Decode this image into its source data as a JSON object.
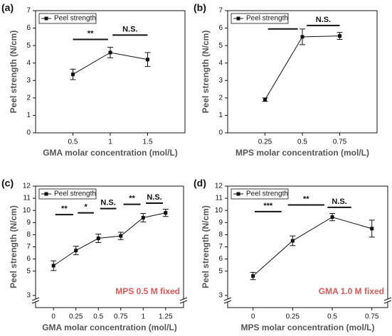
{
  "chart_data": [
    {
      "type": "line",
      "panel_label": "(a)",
      "x_label": "GMA molar concentration (mol/L)",
      "y_label": "Peel strength (N/cm)",
      "x": [
        0.5,
        1,
        1.5
      ],
      "series": [
        {
          "name": "Peel strength",
          "color": "#111111",
          "values": [
            3.35,
            4.6,
            4.2
          ],
          "errors": [
            0.3,
            0.3,
            0.4
          ]
        }
      ],
      "xlim": [
        0,
        2
      ],
      "ylim": [
        0,
        7
      ],
      "xticks": [
        0.5,
        1,
        1.5
      ],
      "yticks": [
        0,
        1,
        2,
        3,
        4,
        5,
        6,
        7
      ],
      "legend": "upper left",
      "y_break": false,
      "annotations": [
        "**",
        "N.S."
      ]
    },
    {
      "type": "line",
      "panel_label": "(b)",
      "x_label": "MPS molar concentration (mol/L)",
      "y_label": "Peel strength (N/cm)",
      "x": [
        0.25,
        0.5,
        0.75
      ],
      "series": [
        {
          "name": "Peel strength",
          "color": "#111111",
          "values": [
            1.9,
            5.5,
            5.55
          ],
          "errors": [
            0.1,
            0.45,
            0.2
          ]
        }
      ],
      "xlim": [
        0,
        1
      ],
      "ylim": [
        0,
        7
      ],
      "xticks": [
        0.25,
        0.5,
        0.75
      ],
      "yticks": [
        0,
        1,
        2,
        3,
        4,
        5,
        6,
        7
      ],
      "legend": "upper left",
      "y_break": false,
      "annotations": [
        "**",
        "N.S."
      ]
    },
    {
      "type": "line",
      "panel_label": "(c)",
      "x_label": "GMA molar concentration (mol/L)",
      "y_label": "Peel strength (N/cm)",
      "x": [
        0,
        0.25,
        0.5,
        0.75,
        1,
        1.25
      ],
      "series": [
        {
          "name": "Peel strength",
          "color": "#111111",
          "values": [
            5.45,
            6.7,
            7.7,
            7.9,
            9.4,
            9.8
          ],
          "errors": [
            0.4,
            0.35,
            0.35,
            0.3,
            0.35,
            0.3
          ]
        }
      ],
      "xlim": [
        -0.2,
        1.45
      ],
      "ylim": [
        2,
        12
      ],
      "xticks": [
        0,
        0.25,
        0.5,
        0.75,
        1,
        1.25
      ],
      "yticks": [
        3,
        5,
        6,
        7,
        8,
        9,
        10,
        11,
        12
      ],
      "legend": "upper left",
      "y_break": true,
      "annotations": [
        "**",
        "*",
        "N.S.",
        "**",
        "N.S."
      ],
      "note": "MPS 0.5 M fixed"
    },
    {
      "type": "line",
      "panel_label": "(d)",
      "x_label": "MPS molar concentration (mol/L)",
      "y_label": "Peel strength (N/cm)",
      "x": [
        0,
        0.25,
        0.5,
        0.75
      ],
      "series": [
        {
          "name": "Peel strength",
          "color": "#111111",
          "values": [
            4.6,
            7.5,
            9.45,
            8.5
          ],
          "errors": [
            0.3,
            0.4,
            0.3,
            0.7
          ]
        }
      ],
      "xlim": [
        -0.16,
        0.85
      ],
      "ylim": [
        2,
        12
      ],
      "xticks": [
        0,
        0.25,
        0.5,
        0.75
      ],
      "yticks": [
        3,
        5,
        6,
        7,
        8,
        9,
        10,
        11,
        12
      ],
      "legend": "upper left",
      "y_break": true,
      "annotations": [
        "***",
        "**",
        "N.S."
      ],
      "note": "GMA 1.0 M fixed"
    }
  ]
}
